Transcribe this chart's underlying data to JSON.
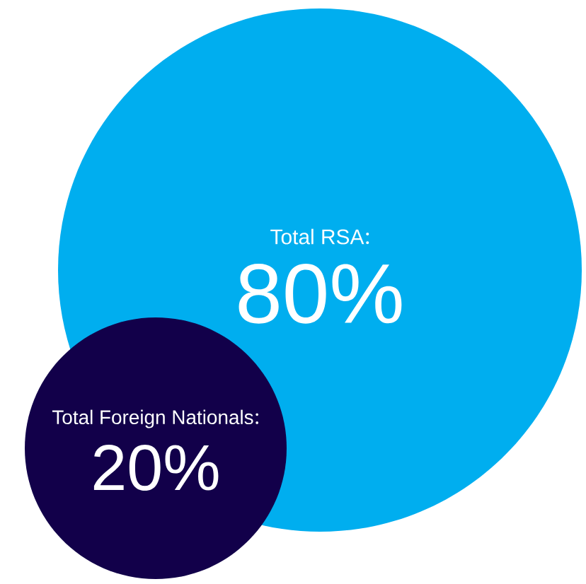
{
  "chart_data": {
    "type": "other",
    "categories": [
      "Total RSA",
      "Total Foreign Nationals"
    ],
    "values": [
      80,
      20
    ],
    "value_labels": [
      "80%",
      "20%"
    ],
    "colors": [
      "#00aeef",
      "#12004a"
    ]
  }
}
